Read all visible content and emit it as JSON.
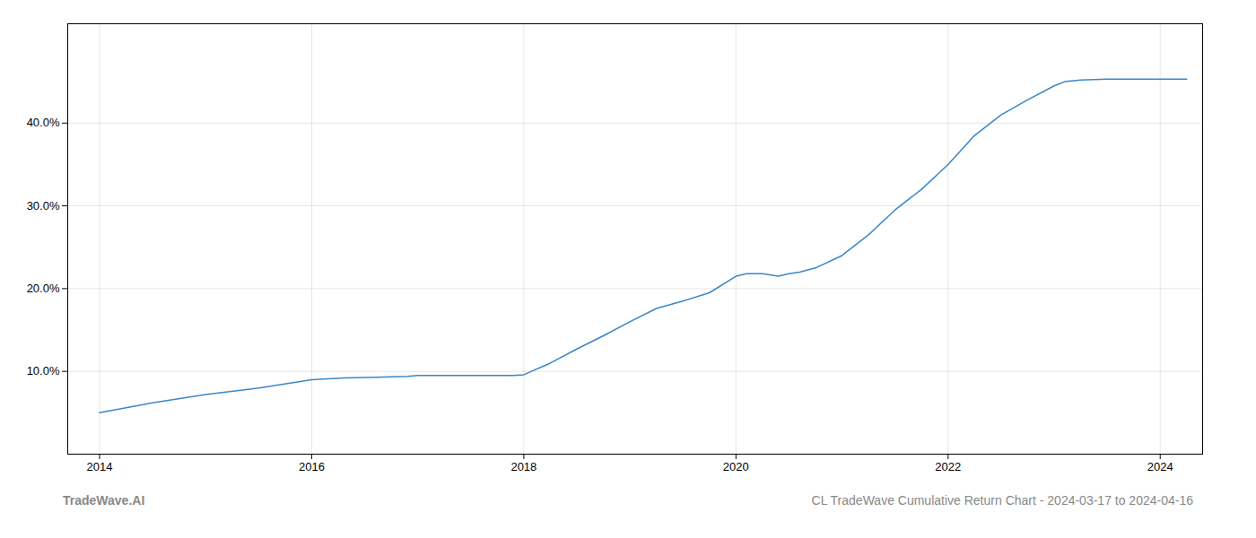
{
  "chart_data": {
    "type": "line",
    "x": [
      2014.0,
      2014.5,
      2015.0,
      2015.5,
      2016.0,
      2016.3,
      2016.6,
      2016.9,
      2017.0,
      2017.1,
      2017.3,
      2017.6,
      2017.9,
      2018.0,
      2018.25,
      2018.5,
      2018.75,
      2019.0,
      2019.25,
      2019.5,
      2019.75,
      2020.0,
      2020.1,
      2020.25,
      2020.4,
      2020.5,
      2020.6,
      2020.75,
      2021.0,
      2021.25,
      2021.5,
      2021.75,
      2022.0,
      2022.25,
      2022.5,
      2022.75,
      2023.0,
      2023.1,
      2023.25,
      2023.5,
      2023.75,
      2024.0,
      2024.25
    ],
    "values": [
      0.05,
      0.062,
      0.072,
      0.08,
      0.09,
      0.092,
      0.093,
      0.094,
      0.095,
      0.095,
      0.095,
      0.095,
      0.095,
      0.096,
      0.11,
      0.127,
      0.143,
      0.16,
      0.176,
      0.185,
      0.195,
      0.215,
      0.218,
      0.218,
      0.215,
      0.218,
      0.22,
      0.225,
      0.24,
      0.265,
      0.295,
      0.32,
      0.35,
      0.385,
      0.41,
      0.428,
      0.445,
      0.45,
      0.452,
      0.453,
      0.453,
      0.453,
      0.453
    ],
    "color": "#3a86c8",
    "xlim": [
      2013.7,
      2024.4
    ],
    "ylim": [
      0.0,
      0.52
    ],
    "xticks": [
      2014,
      2016,
      2018,
      2020,
      2022,
      2024
    ],
    "yticks": [
      {
        "value": 0.1,
        "label": "10.0%"
      },
      {
        "value": 0.2,
        "label": "20.0%"
      },
      {
        "value": 0.3,
        "label": "30.0%"
      },
      {
        "value": 0.4,
        "label": "40.0%"
      }
    ],
    "grid": true,
    "annotations": [
      "TradeWave.AI",
      "CL TradeWave Cumulative Return Chart - 2024-03-17 to 2024-04-16"
    ]
  }
}
